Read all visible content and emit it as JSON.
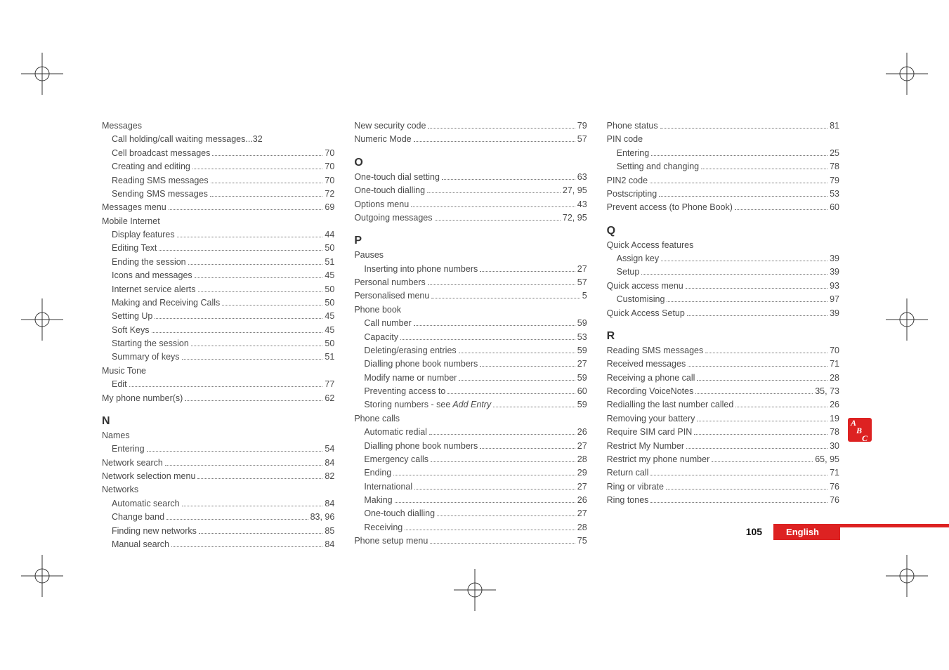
{
  "columns": [
    [
      {
        "type": "heading",
        "t": "Messages"
      },
      {
        "i": 1,
        "t": "Call holding/call waiting messages",
        "p": "...32"
      },
      {
        "i": 1,
        "t": "Cell broadcast messages",
        "p": "70"
      },
      {
        "i": 1,
        "t": "Creating and editing",
        "p": "70"
      },
      {
        "i": 1,
        "t": "Reading SMS messages",
        "p": "70"
      },
      {
        "i": 1,
        "t": "Sending SMS messages",
        "p": "72"
      },
      {
        "i": 0,
        "t": "Messages menu",
        "p": "69"
      },
      {
        "type": "heading",
        "t": "Mobile Internet"
      },
      {
        "i": 1,
        "t": "Display features",
        "p": "44"
      },
      {
        "i": 1,
        "t": "Editing Text",
        "p": "50"
      },
      {
        "i": 1,
        "t": "Ending the session",
        "p": "51"
      },
      {
        "i": 1,
        "t": "Icons and messages",
        "p": "45"
      },
      {
        "i": 1,
        "t": "Internet service alerts",
        "p": "50"
      },
      {
        "i": 1,
        "t": "Making and Receiving Calls",
        "p": "50"
      },
      {
        "i": 1,
        "t": "Setting Up",
        "p": "45"
      },
      {
        "i": 1,
        "t": "Soft Keys",
        "p": "45"
      },
      {
        "i": 1,
        "t": "Starting the session",
        "p": "50"
      },
      {
        "i": 1,
        "t": "Summary of keys",
        "p": "51"
      },
      {
        "type": "heading",
        "t": "Music Tone"
      },
      {
        "i": 1,
        "t": "Edit",
        "p": "77"
      },
      {
        "i": 0,
        "t": "My phone number(s)",
        "p": "62"
      },
      {
        "type": "section",
        "t": "N"
      },
      {
        "type": "heading",
        "t": "Names"
      },
      {
        "i": 1,
        "t": "Entering",
        "p": "54"
      },
      {
        "i": 0,
        "t": "Network search",
        "p": "84"
      },
      {
        "i": 0,
        "t": "Network selection menu",
        "p": "82"
      },
      {
        "type": "heading",
        "t": "Networks"
      },
      {
        "i": 1,
        "t": "Automatic search",
        "p": "84"
      },
      {
        "i": 1,
        "t": "Change band",
        "p": "83, 96"
      },
      {
        "i": 1,
        "t": "Finding new networks",
        "p": "85"
      },
      {
        "i": 1,
        "t": "Manual search",
        "p": "84"
      }
    ],
    [
      {
        "i": 0,
        "t": "New security code",
        "p": "79"
      },
      {
        "i": 0,
        "t": "Numeric Mode",
        "p": "57"
      },
      {
        "type": "section",
        "t": "O"
      },
      {
        "i": 0,
        "t": "One-touch dial setting",
        "p": "63"
      },
      {
        "i": 0,
        "t": "One-touch dialling",
        "p": "27, 95"
      },
      {
        "i": 0,
        "t": "Options menu",
        "p": "43"
      },
      {
        "i": 0,
        "t": "Outgoing messages",
        "p": "72, 95"
      },
      {
        "type": "section",
        "t": "P"
      },
      {
        "type": "heading",
        "t": "Pauses"
      },
      {
        "i": 1,
        "t": "Inserting into phone numbers",
        "p": "27"
      },
      {
        "i": 0,
        "t": "Personal numbers",
        "p": "57"
      },
      {
        "i": 0,
        "t": "Personalised menu",
        "p": "5"
      },
      {
        "type": "heading",
        "t": "Phone book"
      },
      {
        "i": 1,
        "t": "Call number",
        "p": "59"
      },
      {
        "i": 1,
        "t": "Capacity",
        "p": "53"
      },
      {
        "i": 1,
        "t": "Deleting/erasing entries",
        "p": "59"
      },
      {
        "i": 1,
        "t": "Dialling phone book numbers",
        "p": "27"
      },
      {
        "i": 1,
        "t": "Modify name or number",
        "p": "59"
      },
      {
        "i": 1,
        "t": "Preventing access to",
        "p": "60"
      },
      {
        "i": 1,
        "t": "Storing numbers - see",
        "italic": "Add Entry",
        "p": "59"
      },
      {
        "type": "heading",
        "t": "Phone calls"
      },
      {
        "i": 1,
        "t": "Automatic redial",
        "p": "26"
      },
      {
        "i": 1,
        "t": "Dialling phone book numbers",
        "p": "27"
      },
      {
        "i": 1,
        "t": "Emergency calls",
        "p": "28"
      },
      {
        "i": 1,
        "t": "Ending",
        "p": "29"
      },
      {
        "i": 1,
        "t": "International",
        "p": "27"
      },
      {
        "i": 1,
        "t": "Making",
        "p": "26"
      },
      {
        "i": 1,
        "t": "One-touch dialling",
        "p": "27"
      },
      {
        "i": 1,
        "t": "Receiving",
        "p": "28"
      },
      {
        "i": 0,
        "t": "Phone setup menu",
        "p": "75"
      }
    ],
    [
      {
        "i": 0,
        "t": "Phone status",
        "p": "81"
      },
      {
        "type": "heading",
        "t": "PIN code"
      },
      {
        "i": 1,
        "t": "Entering",
        "p": "25"
      },
      {
        "i": 1,
        "t": "Setting and changing",
        "p": "78"
      },
      {
        "i": 0,
        "t": "PIN2 code",
        "p": "79"
      },
      {
        "i": 0,
        "t": "Postscripting",
        "p": "53"
      },
      {
        "i": 0,
        "t": "Prevent access (to Phone Book)",
        "p": "60"
      },
      {
        "type": "section",
        "t": "Q"
      },
      {
        "type": "heading",
        "t": "Quick Access features"
      },
      {
        "i": 1,
        "t": "Assign key",
        "p": "39"
      },
      {
        "i": 1,
        "t": "Setup",
        "p": "39"
      },
      {
        "i": 0,
        "t": "Quick access menu",
        "p": "93"
      },
      {
        "i": 1,
        "t": "Customising",
        "p": "97"
      },
      {
        "i": 0,
        "t": "Quick Access Setup",
        "p": "39"
      },
      {
        "type": "section",
        "t": "R"
      },
      {
        "i": 0,
        "t": "Reading SMS messages",
        "p": "70"
      },
      {
        "i": 0,
        "t": "Received messages",
        "p": "71"
      },
      {
        "i": 0,
        "t": "Receiving a phone call",
        "p": "28"
      },
      {
        "i": 0,
        "t": "Recording VoiceNotes",
        "p": "35, 73"
      },
      {
        "i": 0,
        "t": "Redialling the last number called",
        "p": "26"
      },
      {
        "i": 0,
        "t": "Removing your battery",
        "p": "19"
      },
      {
        "i": 0,
        "t": "Require SIM card PIN",
        "p": "78"
      },
      {
        "i": 0,
        "t": "Restrict My Number",
        "p": "30"
      },
      {
        "i": 0,
        "t": "Restrict my phone number",
        "p": "65, 95"
      },
      {
        "i": 0,
        "t": "Return call",
        "p": "71"
      },
      {
        "i": 0,
        "t": "Ring or vibrate",
        "p": "76"
      },
      {
        "i": 0,
        "t": "Ring tones",
        "p": "76"
      }
    ]
  ],
  "footer": {
    "page": "105",
    "lang": "English"
  },
  "tab": {
    "a": "A",
    "b": "B",
    "c": "C"
  }
}
